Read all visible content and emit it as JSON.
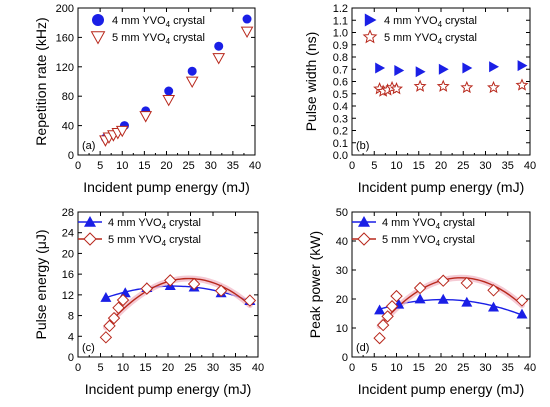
{
  "colors": {
    "series_4mm": "#1a1fe6",
    "series_5mm": "#b8281c",
    "series_5mm_fill": "#ffffff",
    "fit_5mm_glow": "#f2b8c6"
  },
  "chart_data": [
    {
      "type": "scatter",
      "panel": "(a)",
      "xlabel": "Incident pump energy (mJ)",
      "ylabel": "Repetition rate (kHz)",
      "xlim": [
        0,
        40
      ],
      "ylim": [
        0,
        200
      ],
      "xticks": [
        0,
        5,
        10,
        15,
        20,
        25,
        30,
        35,
        40
      ],
      "yticks": [
        0,
        40,
        80,
        120,
        160,
        200
      ],
      "tick_decimals": 0,
      "legend_position": "top-left",
      "series": [
        {
          "name": "4 mm YVO",
          "name_sub": "4",
          "name_suffix": " crystal",
          "marker": "circle",
          "x": [
            6.2,
            10.5,
            15.3,
            20.5,
            25.8,
            31.8,
            38.2
          ],
          "y": [
            23,
            40,
            60,
            87,
            114,
            148,
            185
          ]
        },
        {
          "name": "5 mm YVO",
          "name_sub": "4",
          "name_suffix": " crystal",
          "marker": "triangle-down-open",
          "x": [
            6.2,
            7.0,
            8.0,
            9.0,
            10.0,
            15.3,
            20.5,
            25.8,
            31.8,
            38.2
          ],
          "y": [
            20,
            24,
            27,
            30,
            33,
            53,
            75,
            100,
            132,
            168
          ]
        }
      ]
    },
    {
      "type": "scatter",
      "panel": "(b)",
      "xlabel": "Incident pump energy (mJ)",
      "ylabel": "Pulse width (ns)",
      "xlim": [
        0,
        40
      ],
      "ylim": [
        0.0,
        1.2
      ],
      "xticks": [
        0,
        5,
        10,
        15,
        20,
        25,
        30,
        35,
        40
      ],
      "yticks": [
        0.0,
        0.1,
        0.2,
        0.3,
        0.4,
        0.5,
        0.6,
        0.7,
        0.8,
        0.9,
        1.0,
        1.1,
        1.2
      ],
      "tick_decimals": 1,
      "legend_position": "top-left",
      "series": [
        {
          "name": "4 mm YVO",
          "name_sub": "4",
          "name_suffix": " crystal",
          "marker": "triangle-right",
          "x": [
            6.2,
            10.5,
            15.3,
            20.5,
            25.8,
            31.8,
            38.2
          ],
          "y": [
            0.71,
            0.69,
            0.68,
            0.7,
            0.71,
            0.72,
            0.73
          ]
        },
        {
          "name": "5 mm YVO",
          "name_sub": "4",
          "name_suffix": " crystal",
          "marker": "star-open",
          "x": [
            6.2,
            7.0,
            8.0,
            9.0,
            10.0,
            15.3,
            20.5,
            25.8,
            31.8,
            38.2
          ],
          "y": [
            0.54,
            0.52,
            0.53,
            0.55,
            0.54,
            0.56,
            0.56,
            0.55,
            0.55,
            0.57
          ]
        }
      ]
    },
    {
      "type": "line",
      "panel": "(c)",
      "xlabel": "Incident pump energy (mJ)",
      "ylabel": "Pulse energy (μJ)",
      "xlim": [
        0,
        40
      ],
      "ylim": [
        0,
        28
      ],
      "xticks": [
        0,
        5,
        10,
        15,
        20,
        25,
        30,
        35,
        40
      ],
      "yticks": [
        0,
        4,
        8,
        12,
        16,
        20,
        24,
        28
      ],
      "tick_decimals": 0,
      "legend_position": "top-left",
      "series": [
        {
          "name": "4 mm YVO",
          "name_sub": "4",
          "name_suffix": " crystal",
          "marker": "triangle-up",
          "fit": true,
          "x": [
            6.2,
            10.5,
            15.3,
            20.5,
            25.8,
            31.8,
            38.2
          ],
          "y": [
            11.5,
            12.4,
            13.4,
            13.8,
            13.5,
            12.4,
            10.9
          ]
        },
        {
          "name": "5 mm YVO",
          "name_sub": "4",
          "name_suffix": " crystal",
          "marker": "diamond-open",
          "fit": true,
          "x": [
            6.2,
            7.0,
            8.0,
            9.0,
            10.0,
            15.3,
            20.5,
            25.8,
            31.8,
            38.2
          ],
          "y": [
            3.8,
            6.0,
            7.5,
            9.5,
            11.0,
            13.2,
            14.8,
            14.1,
            12.8,
            10.9
          ]
        }
      ]
    },
    {
      "type": "line",
      "panel": "(d)",
      "xlabel": "Incident pump energy (mJ)",
      "ylabel": "Peak power (kW)",
      "xlim": [
        0,
        40
      ],
      "ylim": [
        0,
        50
      ],
      "xticks": [
        0,
        5,
        10,
        15,
        20,
        25,
        30,
        35,
        40
      ],
      "yticks": [
        0,
        10,
        20,
        30,
        40,
        50
      ],
      "tick_decimals": 0,
      "legend_position": "top-left",
      "series": [
        {
          "name": "4 mm YVO",
          "name_sub": "4",
          "name_suffix": " crystal",
          "marker": "triangle-up",
          "fit": true,
          "x": [
            6.2,
            10.5,
            15.3,
            20.5,
            25.8,
            31.8,
            38.2
          ],
          "y": [
            16.2,
            18.2,
            20.0,
            19.9,
            18.9,
            17.2,
            14.8
          ]
        },
        {
          "name": "5 mm YVO",
          "name_sub": "4",
          "name_suffix": " crystal",
          "marker": "diamond-open",
          "fit": true,
          "x": [
            6.2,
            7.0,
            8.0,
            9.0,
            10.0,
            15.3,
            20.5,
            25.8,
            31.8,
            38.2
          ],
          "y": [
            6.5,
            11.0,
            14.0,
            17.5,
            21.0,
            23.8,
            26.3,
            25.5,
            23.0,
            19.5
          ]
        }
      ]
    }
  ]
}
